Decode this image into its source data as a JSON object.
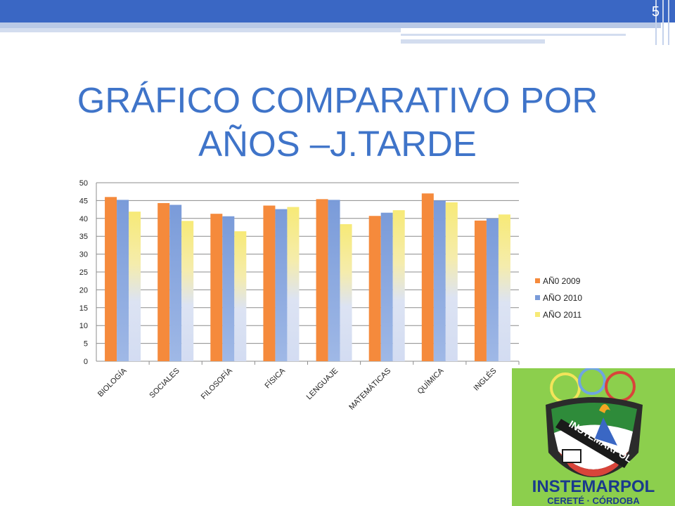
{
  "slide": {
    "number": "5",
    "title_line1": "GRÁFICO COMPARATIVO POR",
    "title_line2": "AÑOS –J.TARDE"
  },
  "logo": {
    "name": "INSTEMARPOL",
    "subtitle": "CERETÉ · CÓRDOBA",
    "band_text": "INSTEMARPOL"
  },
  "colors": {
    "accent": "#3a67c4",
    "title": "#3f74c9",
    "series_2009": "#f58a3c",
    "series_2010": "#7a9bd9",
    "series_2011": "#f7ea77",
    "logo_bg": "#8ccf4d"
  },
  "chart_data": {
    "type": "bar",
    "categories": [
      "BIOLOGÍA",
      "SOCIALES",
      "FILOSOFÍA",
      "FÍSICA",
      "LENGUAJE",
      "MATEMÁTICAS",
      "QUÍMICA",
      "INGLÉS"
    ],
    "series": [
      {
        "name": "AÑ0 2009",
        "values": [
          46.0,
          44.3,
          41.3,
          43.6,
          45.4,
          40.7,
          47.0,
          39.4
        ]
      },
      {
        "name": "AÑO 2010",
        "values": [
          45.2,
          43.8,
          40.6,
          42.6,
          45.2,
          41.6,
          45.0,
          40.0
        ]
      },
      {
        "name": "AÑO 2011",
        "values": [
          41.9,
          39.3,
          36.4,
          43.2,
          38.4,
          42.3,
          44.5,
          41.1
        ]
      }
    ],
    "y_ticks": [
      "0",
      "5",
      "10",
      "15",
      "20",
      "25",
      "30",
      "35",
      "40",
      "45",
      "50"
    ],
    "ylim": [
      0,
      50
    ],
    "grid": true,
    "legend_position": "right"
  }
}
